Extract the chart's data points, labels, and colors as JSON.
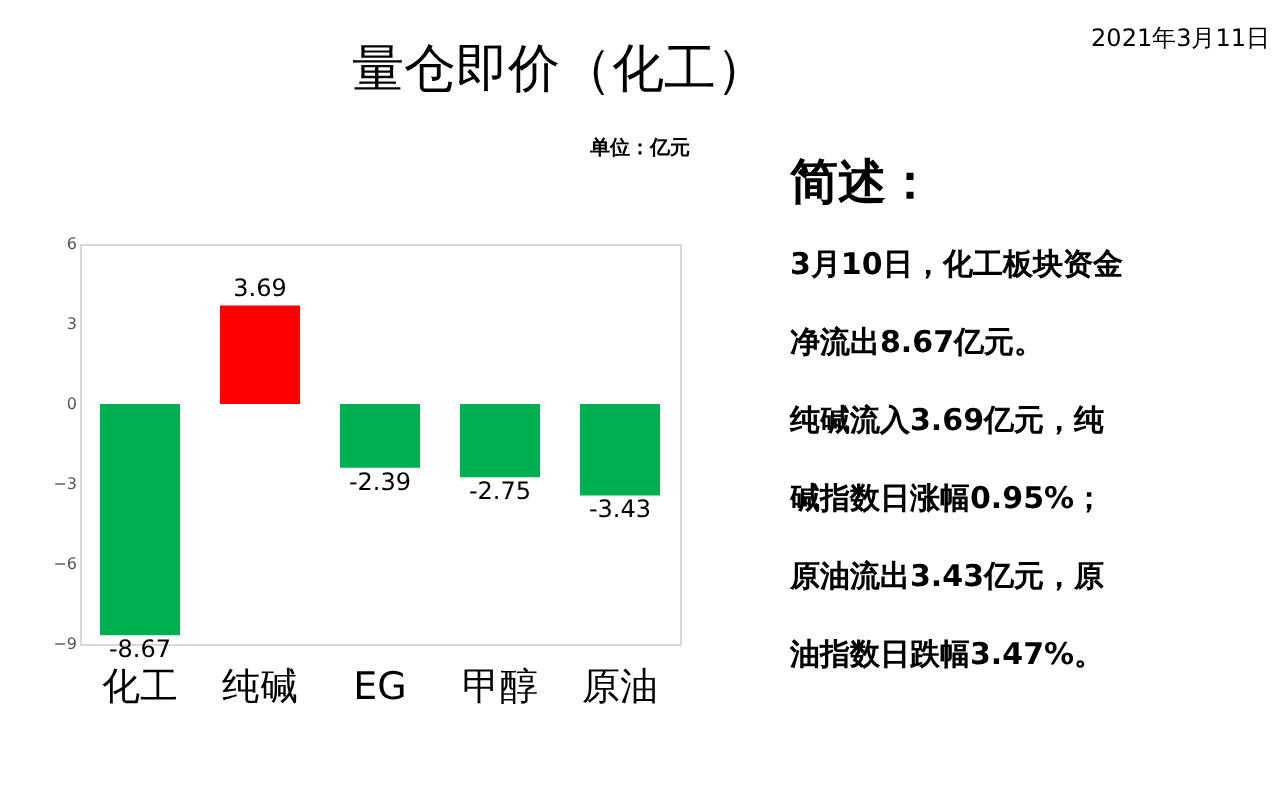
{
  "chart_data": {
    "type": "bar",
    "title": "量仓即价（化工）",
    "categories": [
      "化工",
      "纯碱",
      "EG",
      "甲醇",
      "原油"
    ],
    "values": [
      -8.67,
      3.69,
      -2.39,
      -2.75,
      -3.43
    ],
    "colors": [
      "#00b050",
      "#ff0000",
      "#00b050",
      "#00b050",
      "#00b050"
    ],
    "ylim": [
      -9,
      6
    ],
    "yticks": [
      -9,
      -6,
      -3,
      0,
      3,
      6
    ],
    "grid": false,
    "data_labels": true,
    "annotations": [
      "单位：亿元",
      "2021年3月11日",
      "简述：",
      "3月10日，化工板块资金",
      "净流出8.67亿元。",
      "纯碱流入3.69亿元，纯",
      "碱指数日涨幅0.95%；",
      "原油流出3.43亿元，原",
      "油指数日跌幅3.47%。"
    ]
  }
}
